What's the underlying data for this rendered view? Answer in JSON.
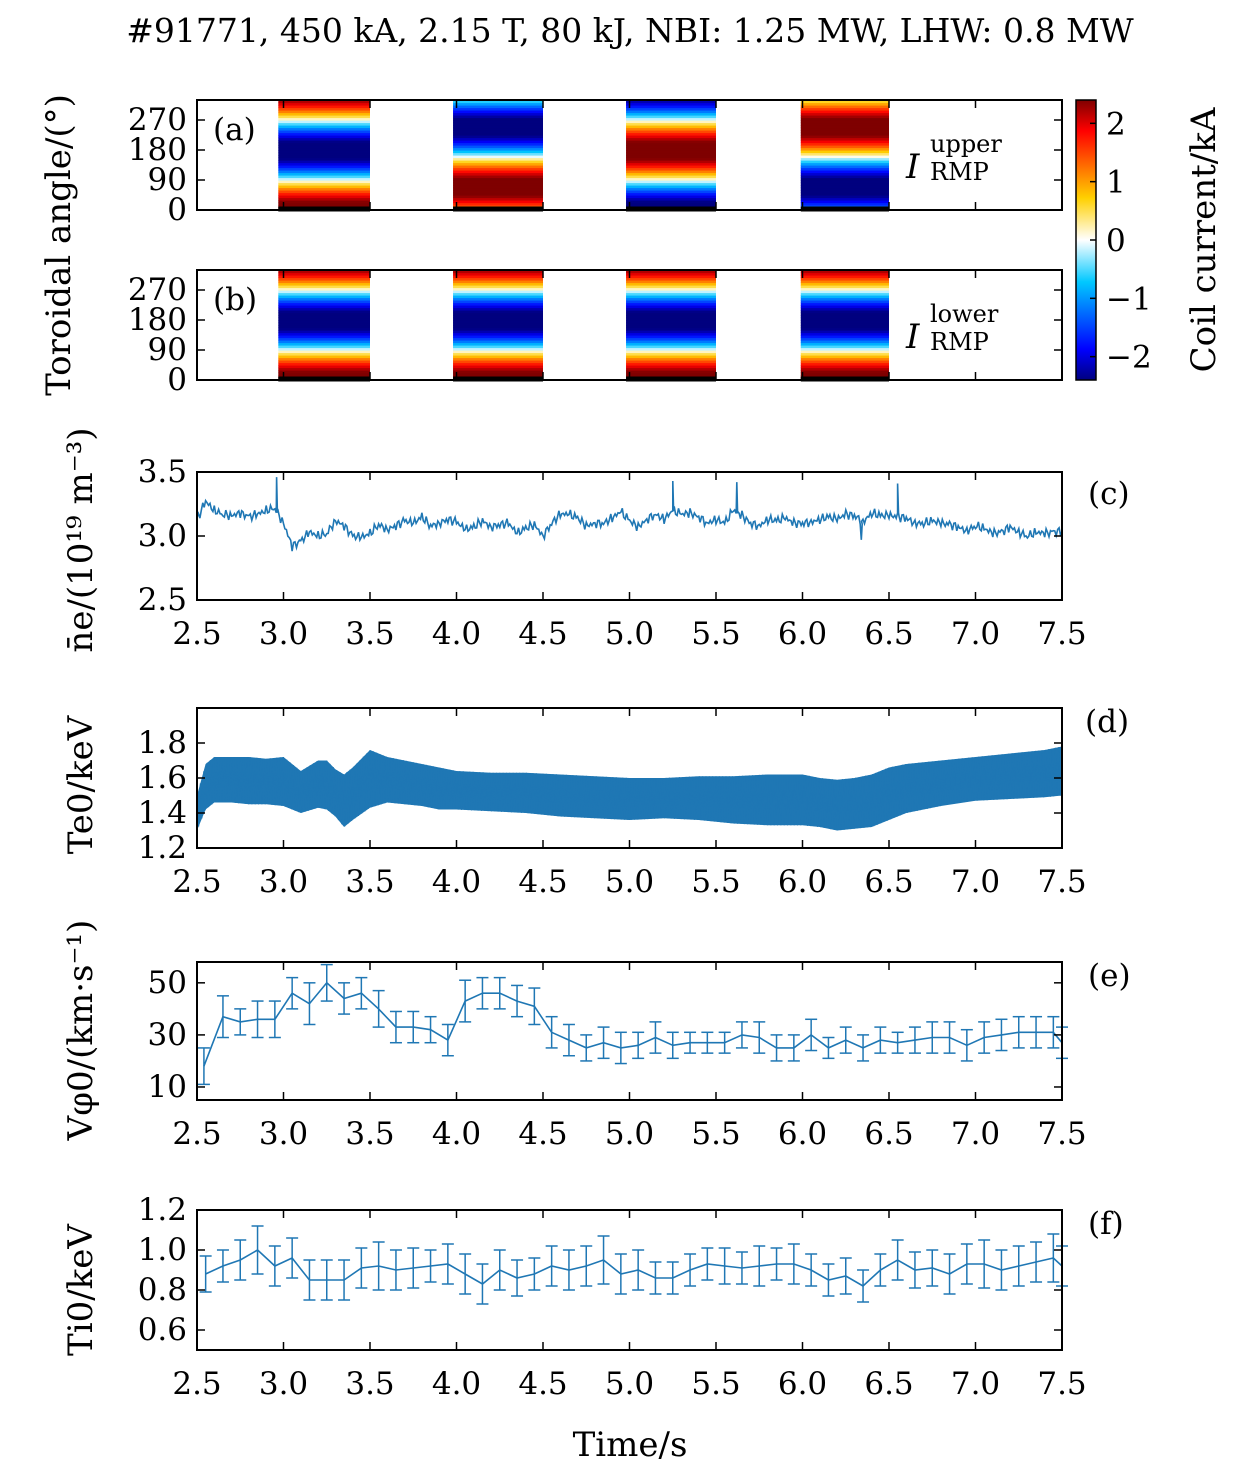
{
  "title": "#91771, 450 kA, 2.15 T, 80 kJ, NBI: 1.25 MW, LHW: 0.8 MW",
  "shared_xlabel": "Time/s",
  "shared_ylabel_ab": "Toroidal angle/(°)",
  "colors": {
    "line": "#1f77b4",
    "frame": "#000000"
  },
  "colorbar": {
    "label": "Coil current/kA",
    "ticks": [
      "2",
      "1",
      "0",
      "−1",
      "−2"
    ],
    "tick_values": [
      2,
      1,
      0,
      -1,
      -2
    ],
    "range": [
      -2.4,
      2.4
    ],
    "colormap": "jet"
  },
  "chart_data": [
    {
      "panel": "(a)",
      "type": "heatmap",
      "series_label_main": "I",
      "series_label_sup": "upper",
      "series_label_sub": "RMP",
      "yticks": [
        "270",
        "180",
        "90",
        "0"
      ],
      "ytick_values": [
        270,
        180,
        90,
        0
      ],
      "ylim": [
        0,
        330
      ],
      "xlim": [
        2.5,
        7.5
      ],
      "blocks": [
        {
          "t_start": 2.97,
          "t_end": 3.5,
          "profile": "pos_low_neg_high",
          "phase": 1
        },
        {
          "t_start": 3.98,
          "t_end": 4.5,
          "profile": "pos_mid_neg_high",
          "phase": 2
        },
        {
          "t_start": 4.98,
          "t_end": 5.5,
          "profile": "neg_low_pos_high",
          "phase": 3
        },
        {
          "t_start": 5.99,
          "t_end": 6.5,
          "profile": "neg_mid_pos_high",
          "phase": 4
        }
      ]
    },
    {
      "panel": "(b)",
      "type": "heatmap",
      "series_label_main": "I",
      "series_label_sup": "lower",
      "series_label_sub": "RMP",
      "yticks": [
        "270",
        "180",
        "90",
        "0"
      ],
      "ytick_values": [
        270,
        180,
        90,
        0
      ],
      "ylim": [
        0,
        330
      ],
      "xlim": [
        2.5,
        7.5
      ],
      "blocks": [
        {
          "t_start": 2.97,
          "t_end": 3.5,
          "profile": "pos_low_neg_high",
          "phase": 1
        },
        {
          "t_start": 3.98,
          "t_end": 4.5,
          "profile": "pos_low_neg_high",
          "phase": 1
        },
        {
          "t_start": 4.98,
          "t_end": 5.5,
          "profile": "pos_low_neg_high",
          "phase": 1
        },
        {
          "t_start": 5.99,
          "t_end": 6.5,
          "profile": "pos_low_neg_high",
          "phase": 1
        }
      ]
    },
    {
      "panel": "(c)",
      "type": "line",
      "ylabel": "n̄e/(10¹⁹ m⁻³)",
      "xlim": [
        2.5,
        7.5
      ],
      "ylim": [
        2.5,
        3.5
      ],
      "yticks": [
        "3.5",
        "3.0",
        "2.5"
      ],
      "ytick_values": [
        3.5,
        3.0,
        2.5
      ],
      "xticks": [
        "2.5",
        "3.0",
        "3.5",
        "4.0",
        "4.5",
        "5.0",
        "5.5",
        "6.0",
        "6.5",
        "7.0",
        "7.5"
      ],
      "x": [
        2.5,
        2.55,
        2.6,
        2.65,
        2.7,
        2.75,
        2.8,
        2.85,
        2.9,
        2.95,
        3.0,
        3.05,
        3.1,
        3.15,
        3.2,
        3.25,
        3.3,
        3.35,
        3.4,
        3.45,
        3.5,
        3.55,
        3.6,
        3.65,
        3.7,
        3.75,
        3.8,
        3.85,
        3.9,
        3.95,
        4.0,
        4.05,
        4.1,
        4.15,
        4.2,
        4.25,
        4.3,
        4.35,
        4.4,
        4.45,
        4.5,
        4.55,
        4.6,
        4.65,
        4.7,
        4.75,
        4.8,
        4.85,
        4.9,
        4.95,
        5.0,
        5.05,
        5.1,
        5.15,
        5.2,
        5.25,
        5.3,
        5.35,
        5.4,
        5.45,
        5.5,
        5.55,
        5.6,
        5.65,
        5.7,
        5.75,
        5.8,
        5.85,
        5.9,
        5.95,
        6.0,
        6.05,
        6.1,
        6.15,
        6.2,
        6.25,
        6.3,
        6.35,
        6.4,
        6.45,
        6.5,
        6.55,
        6.6,
        6.65,
        6.7,
        6.75,
        6.8,
        6.85,
        6.9,
        6.95,
        7.0,
        7.05,
        7.1,
        7.15,
        7.2,
        7.25,
        7.3,
        7.35,
        7.4,
        7.45,
        7.5
      ],
      "y": [
        3.13,
        3.27,
        3.2,
        3.17,
        3.16,
        3.18,
        3.15,
        3.17,
        3.2,
        3.22,
        3.1,
        2.92,
        2.96,
        3.03,
        3.0,
        3.02,
        3.12,
        3.08,
        3.0,
        2.99,
        3.02,
        3.09,
        3.05,
        3.08,
        3.12,
        3.1,
        3.15,
        3.08,
        3.1,
        3.13,
        3.11,
        3.05,
        3.07,
        3.12,
        3.07,
        3.09,
        3.1,
        3.02,
        3.06,
        3.09,
        3.0,
        3.1,
        3.17,
        3.17,
        3.14,
        3.08,
        3.1,
        3.1,
        3.14,
        3.19,
        3.12,
        3.07,
        3.13,
        3.17,
        3.13,
        3.2,
        3.17,
        3.18,
        3.15,
        3.1,
        3.13,
        3.1,
        3.2,
        3.16,
        3.1,
        3.08,
        3.13,
        3.12,
        3.14,
        3.1,
        3.1,
        3.11,
        3.13,
        3.15,
        3.13,
        3.17,
        3.16,
        3.11,
        3.18,
        3.16,
        3.16,
        3.15,
        3.14,
        3.1,
        3.1,
        3.12,
        3.1,
        3.09,
        3.07,
        3.04,
        3.08,
        3.06,
        3.02,
        3.03,
        3.07,
        3.03,
        3.0,
        3.03,
        3.02,
        3.03,
        3.04
      ],
      "spikes": [
        {
          "x": 2.96,
          "y": 3.46
        },
        {
          "x": 5.25,
          "y": 3.43
        },
        {
          "x": 5.62,
          "y": 3.42
        },
        {
          "x": 6.55,
          "y": 3.41
        },
        {
          "x": 6.34,
          "y": 2.97
        }
      ]
    },
    {
      "panel": "(d)",
      "type": "area",
      "ylabel": "Te0/keV",
      "xlim": [
        2.5,
        7.5
      ],
      "ylim": [
        1.2,
        2.0
      ],
      "yticks": [
        "1.8",
        "1.6",
        "1.4",
        "1.2"
      ],
      "ytick_values": [
        1.8,
        1.6,
        1.4,
        1.2
      ],
      "xticks": [
        "2.5",
        "3.0",
        "3.5",
        "4.0",
        "4.5",
        "5.0",
        "5.5",
        "6.0",
        "6.5",
        "7.0",
        "7.5"
      ],
      "x": [
        2.5,
        2.55,
        2.6,
        2.7,
        2.8,
        2.9,
        3.0,
        3.1,
        3.2,
        3.25,
        3.3,
        3.35,
        3.4,
        3.5,
        3.6,
        3.7,
        3.8,
        3.9,
        4.0,
        4.2,
        4.4,
        4.6,
        4.8,
        5.0,
        5.2,
        5.4,
        5.6,
        5.8,
        6.0,
        6.1,
        6.2,
        6.3,
        6.4,
        6.5,
        6.6,
        6.8,
        7.0,
        7.2,
        7.4,
        7.5
      ],
      "ymin": [
        1.3,
        1.42,
        1.46,
        1.46,
        1.45,
        1.45,
        1.44,
        1.4,
        1.43,
        1.42,
        1.38,
        1.32,
        1.36,
        1.43,
        1.46,
        1.45,
        1.44,
        1.42,
        1.42,
        1.41,
        1.4,
        1.38,
        1.37,
        1.36,
        1.37,
        1.36,
        1.34,
        1.33,
        1.33,
        1.32,
        1.3,
        1.31,
        1.32,
        1.36,
        1.4,
        1.44,
        1.47,
        1.48,
        1.49,
        1.5
      ],
      "ymax": [
        1.5,
        1.68,
        1.72,
        1.72,
        1.72,
        1.71,
        1.72,
        1.64,
        1.7,
        1.7,
        1.65,
        1.62,
        1.66,
        1.76,
        1.72,
        1.7,
        1.68,
        1.66,
        1.64,
        1.63,
        1.63,
        1.62,
        1.61,
        1.6,
        1.6,
        1.61,
        1.61,
        1.62,
        1.62,
        1.6,
        1.59,
        1.6,
        1.62,
        1.66,
        1.68,
        1.7,
        1.72,
        1.74,
        1.76,
        1.78
      ]
    },
    {
      "panel": "(e)",
      "type": "line",
      "ylabel": "Vφ0/(km·s⁻¹)",
      "xlim": [
        2.5,
        7.5
      ],
      "ylim": [
        5,
        58
      ],
      "yticks": [
        "50",
        "30",
        "10"
      ],
      "ytick_values": [
        50,
        30,
        10
      ],
      "xticks": [
        "2.5",
        "3.0",
        "3.5",
        "4.0",
        "4.5",
        "5.0",
        "5.5",
        "6.0",
        "6.5",
        "7.0",
        "7.5"
      ],
      "x": [
        2.54,
        2.65,
        2.75,
        2.85,
        2.95,
        3.05,
        3.15,
        3.25,
        3.35,
        3.45,
        3.55,
        3.65,
        3.75,
        3.85,
        3.95,
        4.05,
        4.15,
        4.25,
        4.35,
        4.45,
        4.55,
        4.65,
        4.75,
        4.85,
        4.95,
        5.05,
        5.15,
        5.25,
        5.35,
        5.45,
        5.55,
        5.65,
        5.75,
        5.85,
        5.95,
        6.05,
        6.15,
        6.25,
        6.35,
        6.45,
        6.55,
        6.65,
        6.75,
        6.85,
        6.95,
        7.05,
        7.15,
        7.25,
        7.35,
        7.45,
        7.5
      ],
      "y": [
        18,
        37,
        35,
        36,
        36,
        46,
        42,
        50,
        44,
        46,
        40,
        33,
        33,
        32,
        28,
        43,
        46,
        46,
        43,
        41,
        31,
        28,
        25,
        27,
        25,
        26,
        29,
        26,
        27,
        27,
        27,
        30,
        29,
        25,
        25,
        30,
        25,
        28,
        25,
        28,
        27,
        28,
        29,
        29,
        26,
        29,
        30,
        31,
        31,
        31,
        27
      ],
      "err": [
        7,
        8,
        5,
        7,
        7,
        6,
        8,
        7,
        6,
        6,
        7,
        6,
        6,
        5,
        6,
        8,
        6,
        6,
        6,
        7,
        6,
        6,
        5,
        6,
        6,
        5,
        6,
        5,
        4,
        4,
        4,
        5,
        6,
        5,
        5,
        6,
        4,
        5,
        5,
        5,
        4,
        5,
        6,
        6,
        6,
        6,
        6,
        6,
        6,
        6,
        6
      ]
    },
    {
      "panel": "(f)",
      "type": "line",
      "ylabel": "Ti0/keV",
      "xlim": [
        2.5,
        7.5
      ],
      "ylim": [
        0.5,
        1.2
      ],
      "yticks": [
        "1.2",
        "1.0",
        "0.8",
        "0.6"
      ],
      "ytick_values": [
        1.2,
        1.0,
        0.8,
        0.6
      ],
      "xticks": [
        "2.5",
        "3.0",
        "3.5",
        "4.0",
        "4.5",
        "5.0",
        "5.5",
        "6.0",
        "6.5",
        "7.0",
        "7.5"
      ],
      "x": [
        2.55,
        2.65,
        2.75,
        2.85,
        2.95,
        3.05,
        3.15,
        3.25,
        3.35,
        3.45,
        3.55,
        3.65,
        3.75,
        3.85,
        3.95,
        4.05,
        4.15,
        4.25,
        4.35,
        4.45,
        4.55,
        4.65,
        4.75,
        4.85,
        4.95,
        5.05,
        5.15,
        5.25,
        5.35,
        5.45,
        5.55,
        5.65,
        5.75,
        5.85,
        5.95,
        6.05,
        6.15,
        6.25,
        6.35,
        6.45,
        6.55,
        6.65,
        6.75,
        6.85,
        6.95,
        7.05,
        7.15,
        7.25,
        7.35,
        7.45,
        7.5
      ],
      "y": [
        0.88,
        0.92,
        0.95,
        1.0,
        0.92,
        0.96,
        0.85,
        0.85,
        0.85,
        0.91,
        0.92,
        0.9,
        0.91,
        0.92,
        0.93,
        0.88,
        0.83,
        0.9,
        0.86,
        0.88,
        0.92,
        0.9,
        0.92,
        0.95,
        0.88,
        0.9,
        0.86,
        0.86,
        0.9,
        0.93,
        0.92,
        0.91,
        0.92,
        0.93,
        0.93,
        0.9,
        0.85,
        0.87,
        0.82,
        0.9,
        0.95,
        0.9,
        0.91,
        0.88,
        0.93,
        0.93,
        0.9,
        0.92,
        0.94,
        0.96,
        0.92
      ],
      "err": [
        0.09,
        0.08,
        0.1,
        0.12,
        0.1,
        0.1,
        0.1,
        0.1,
        0.1,
        0.1,
        0.12,
        0.1,
        0.1,
        0.08,
        0.1,
        0.1,
        0.1,
        0.1,
        0.09,
        0.08,
        0.1,
        0.1,
        0.1,
        0.12,
        0.1,
        0.1,
        0.08,
        0.08,
        0.08,
        0.08,
        0.09,
        0.08,
        0.1,
        0.08,
        0.1,
        0.08,
        0.08,
        0.09,
        0.08,
        0.08,
        0.1,
        0.09,
        0.09,
        0.1,
        0.1,
        0.12,
        0.1,
        0.1,
        0.1,
        0.12,
        0.1
      ]
    }
  ]
}
